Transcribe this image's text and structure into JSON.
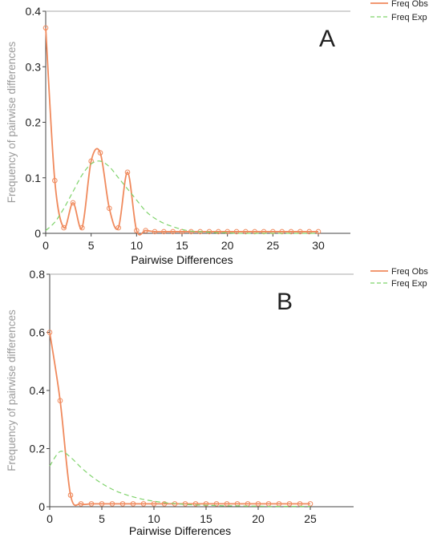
{
  "chart_data": [
    {
      "type": "line",
      "panel_label": "A",
      "xlabel": "Pairwise Differences",
      "ylabel": "Frequency of pairwise differences",
      "xlim": [
        0,
        30
      ],
      "ylim": [
        0,
        0.4
      ],
      "xticks": [
        0,
        5,
        10,
        15,
        20,
        25,
        30
      ],
      "yticks": [
        0,
        0.1,
        0.2,
        0.3,
        0.4
      ],
      "xtick_labels": [
        "0",
        "5",
        "10",
        "15",
        "20",
        "25",
        "30"
      ],
      "ytick_labels": [
        "0",
        "0.1",
        "0.2",
        "0.3",
        "0.4"
      ],
      "legend_position": "top-right",
      "colors": {
        "obs": "#f08a5d",
        "exp": "#7fd36b",
        "axis": "#444444"
      },
      "series": [
        {
          "name": "Freq Obs",
          "style": "solid",
          "markers": true,
          "x": [
            0,
            1,
            2,
            3,
            4,
            5,
            6,
            7,
            8,
            9,
            10,
            11,
            12,
            13,
            14,
            15,
            16,
            17,
            18,
            19,
            20,
            21,
            22,
            23,
            24,
            25,
            26,
            27,
            28,
            29,
            30
          ],
          "y": [
            0.37,
            0.095,
            0.01,
            0.055,
            0.01,
            0.13,
            0.145,
            0.045,
            0.01,
            0.11,
            0.005,
            0.005,
            0.003,
            0.003,
            0.003,
            0.003,
            0.003,
            0.003,
            0.003,
            0.003,
            0.003,
            0.003,
            0.003,
            0.003,
            0.003,
            0.003,
            0.003,
            0.003,
            0.003,
            0.003,
            0.003
          ]
        },
        {
          "name": "Freq Exp",
          "style": "dashed",
          "markers": false,
          "x": [
            0,
            1,
            2,
            3,
            4,
            5,
            6,
            7,
            8,
            9,
            10,
            11,
            12,
            13,
            14,
            15,
            16,
            17,
            18,
            19,
            20,
            21,
            22,
            23,
            24,
            25,
            26,
            27,
            28,
            29,
            30
          ],
          "y": [
            0.005,
            0.02,
            0.045,
            0.075,
            0.105,
            0.125,
            0.13,
            0.12,
            0.1,
            0.08,
            0.06,
            0.04,
            0.027,
            0.018,
            0.012,
            0.007,
            0.004,
            0.003,
            0.002,
            0.001,
            0.001,
            0,
            0,
            0,
            0,
            0,
            0,
            0,
            0,
            0,
            0
          ]
        }
      ]
    },
    {
      "type": "line",
      "panel_label": "B",
      "xlabel": "Pairwise Differences",
      "ylabel": "Frequency of pairwise differences",
      "xlim": [
        0,
        25
      ],
      "ylim": [
        0,
        0.8
      ],
      "xticks": [
        0,
        5,
        10,
        15,
        20,
        25
      ],
      "yticks": [
        0,
        0.2,
        0.4,
        0.6,
        0.8
      ],
      "xtick_labels": [
        "0",
        "5",
        "10",
        "15",
        "20",
        "25"
      ],
      "ytick_labels": [
        "0",
        "0.2",
        "0.4",
        "0.6",
        "0.8"
      ],
      "legend_position": "top-right",
      "colors": {
        "obs": "#f08a5d",
        "exp": "#7fd36b",
        "axis": "#444444"
      },
      "series": [
        {
          "name": "Freq Obs",
          "style": "solid",
          "markers": true,
          "x": [
            0,
            1,
            2,
            3,
            4,
            5,
            6,
            7,
            8,
            9,
            10,
            11,
            12,
            13,
            14,
            15,
            16,
            17,
            18,
            19,
            20,
            21,
            22,
            23,
            24,
            25
          ],
          "y": [
            0.6,
            0.365,
            0.04,
            0.01,
            0.01,
            0.01,
            0.01,
            0.01,
            0.01,
            0.01,
            0.01,
            0.01,
            0.01,
            0.01,
            0.01,
            0.01,
            0.01,
            0.01,
            0.01,
            0.01,
            0.01,
            0.01,
            0.01,
            0.01,
            0.01,
            0.01
          ]
        },
        {
          "name": "Freq Exp",
          "style": "dashed",
          "markers": false,
          "x": [
            0,
            1,
            2,
            3,
            4,
            5,
            6,
            7,
            8,
            9,
            10,
            11,
            12,
            13,
            14,
            15,
            16,
            17,
            18,
            19,
            20,
            21,
            22,
            23,
            24,
            25
          ],
          "y": [
            0.14,
            0.19,
            0.17,
            0.135,
            0.105,
            0.08,
            0.06,
            0.045,
            0.034,
            0.025,
            0.019,
            0.014,
            0.011,
            0.008,
            0.006,
            0.005,
            0.004,
            0.003,
            0.003,
            0.002,
            0.002,
            0.001,
            0.001,
            0.001,
            0.001,
            0.001
          ]
        }
      ]
    }
  ]
}
